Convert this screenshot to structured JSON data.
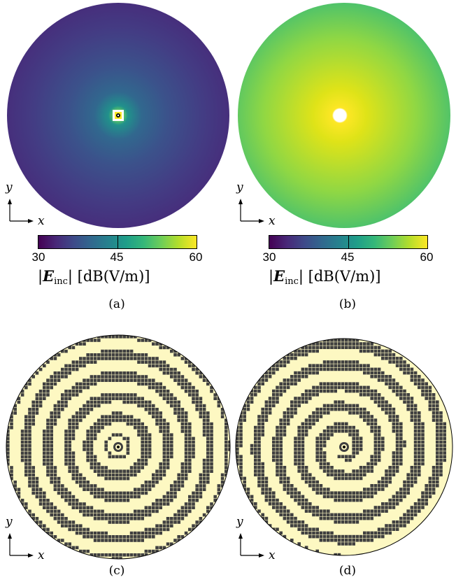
{
  "panels": [
    {
      "id": "a",
      "caption": "(a)",
      "x_axis": "x",
      "y_axis": "y"
    },
    {
      "id": "b",
      "caption": "(b)",
      "x_axis": "x",
      "y_axis": "y"
    },
    {
      "id": "c",
      "caption": "(c)",
      "x_axis": "x",
      "y_axis": "y"
    },
    {
      "id": "d",
      "caption": "(d)",
      "x_axis": "x",
      "y_axis": "y"
    }
  ],
  "colorbar": {
    "ticks": [
      "30",
      "45",
      "60"
    ],
    "range": [
      30,
      60
    ],
    "label_symbol": "E",
    "label_sub": "inc",
    "label_unit": "[dB(V/m)]",
    "colormap": "viridis"
  },
  "colors": {
    "metal": "#404040",
    "background": "#fdf8c2",
    "outline": "#000000"
  }
}
